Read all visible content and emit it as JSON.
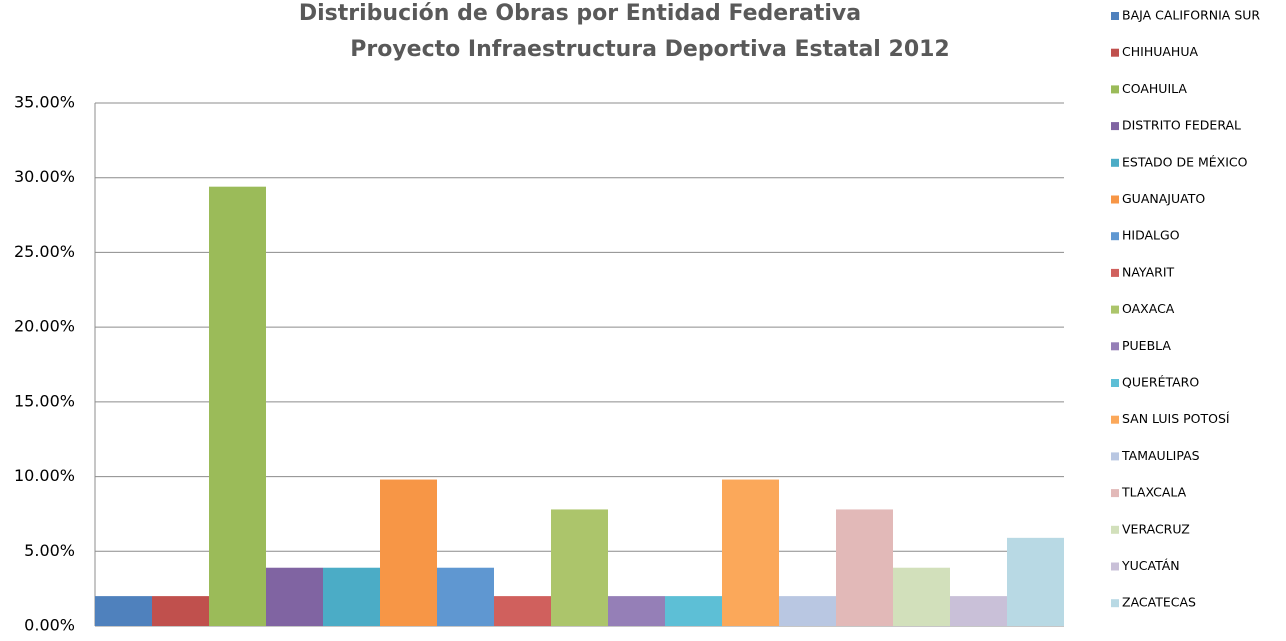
{
  "chart_data": {
    "type": "bar",
    "title": [
      "Distribución de Obras por Entidad Federativa",
      "Proyecto Infraestructura Deportiva Estatal 2012"
    ],
    "series": [
      {
        "name": "BAJA CALIFORNIA SUR",
        "color": "#4f81bd",
        "values": [
          2.0
        ]
      },
      {
        "name": "CHIHUAHUA",
        "color": "#c0504d",
        "values": [
          2.0
        ]
      },
      {
        "name": "COAHUILA",
        "color": "#9bbb59",
        "values": [
          29.4
        ]
      },
      {
        "name": "DISTRITO FEDERAL",
        "color": "#8064a2",
        "values": [
          3.9
        ]
      },
      {
        "name": "ESTADO DE MÉXICO",
        "color": "#4bacc6",
        "values": [
          3.9
        ]
      },
      {
        "name": "GUANAJUATO",
        "color": "#f79646",
        "values": [
          9.8
        ]
      },
      {
        "name": "HIDALGO",
        "color": "#5f97d1",
        "values": [
          3.9
        ]
      },
      {
        "name": "NAYARIT",
        "color": "#d0605d",
        "values": [
          2.0
        ]
      },
      {
        "name": "OAXACA",
        "color": "#acc56b",
        "values": [
          7.8
        ]
      },
      {
        "name": "PUEBLA",
        "color": "#957fb7",
        "values": [
          2.0
        ]
      },
      {
        "name": "QUERÉTARO",
        "color": "#5dbfd6",
        "values": [
          2.0
        ]
      },
      {
        "name": "SAN LUIS POTOSÍ",
        "color": "#fba85a",
        "values": [
          9.8
        ]
      },
      {
        "name": "TAMAULIPAS",
        "color": "#b9c7e2",
        "values": [
          2.0
        ]
      },
      {
        "name": "TLAXCALA",
        "color": "#e2b9b8",
        "values": [
          7.8
        ]
      },
      {
        "name": "VERACRUZ",
        "color": "#d2e0bb",
        "values": [
          3.9
        ]
      },
      {
        "name": "YUCATÁN",
        "color": "#c9c0d8",
        "values": [
          2.0
        ]
      },
      {
        "name": "ZACATECAS",
        "color": "#b8d9e4",
        "values": [
          5.9
        ]
      }
    ],
    "ylim": [
      0,
      35
    ],
    "yticks": [
      {
        "value": 0,
        "label": "0.00%"
      },
      {
        "value": 5,
        "label": "5.00%"
      },
      {
        "value": 10,
        "label": "10.00%"
      },
      {
        "value": 15,
        "label": "15.00%"
      },
      {
        "value": 20,
        "label": "20.00%"
      },
      {
        "value": 25,
        "label": "25.00%"
      },
      {
        "value": 30,
        "label": "30.00%"
      },
      {
        "value": 35,
        "label": "35.00%"
      }
    ],
    "grid": true,
    "legend": "right"
  }
}
